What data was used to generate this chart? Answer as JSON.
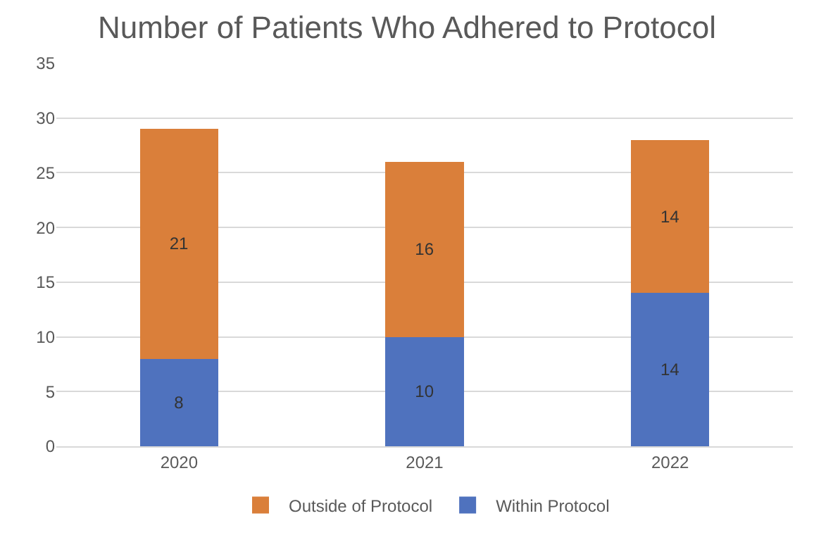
{
  "chart_data": {
    "type": "bar",
    "title": "Number of Patients Who Adhered to Protocol",
    "categories": [
      "2020",
      "2021",
      "2022"
    ],
    "stacked": true,
    "data_labels": true,
    "series": [
      {
        "name": "Within Protocol",
        "color": "#4f72be",
        "values": [
          8,
          10,
          14
        ]
      },
      {
        "name": "Outside of Protocol",
        "color": "#da7f3a",
        "values": [
          21,
          16,
          14
        ]
      }
    ],
    "ylim": [
      0,
      35
    ],
    "yticks": [
      0,
      5,
      10,
      15,
      20,
      25,
      30,
      35
    ],
    "grid": "y",
    "legend": "bottom"
  }
}
